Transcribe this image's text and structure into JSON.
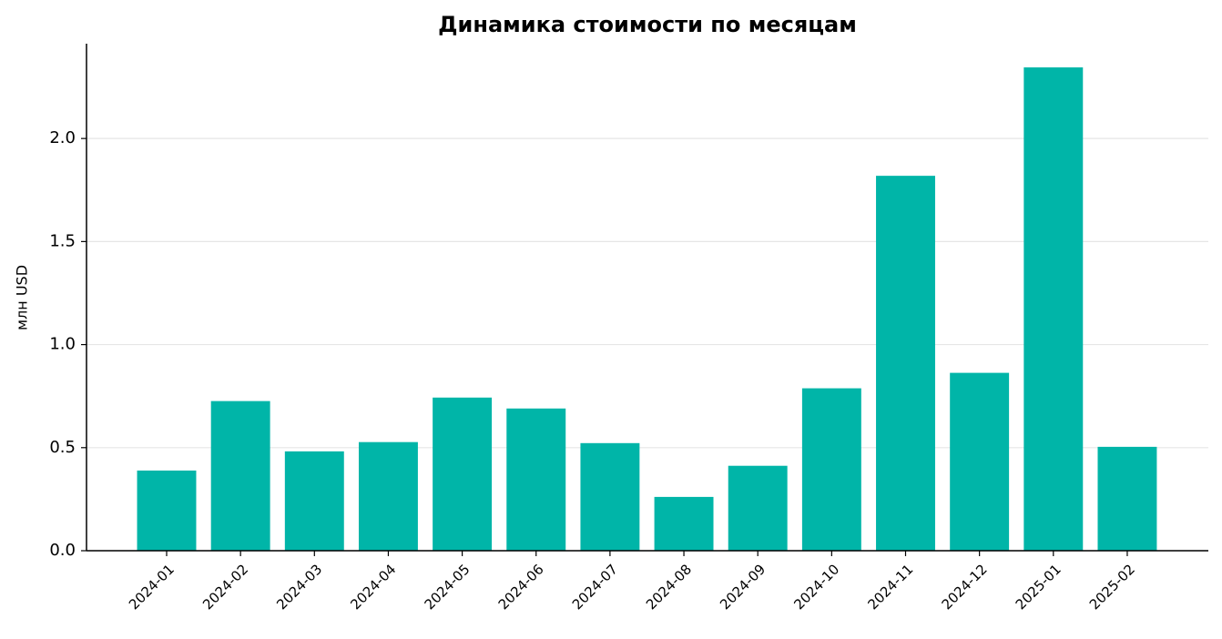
{
  "chart_data": {
    "type": "bar",
    "title": "Динамика стоимости по месяцам",
    "y_label": "млн USD",
    "categories": [
      "2024-01",
      "2024-02",
      "2024-03",
      "2024-04",
      "2024-05",
      "2024-06",
      "2024-07",
      "2024-08",
      "2024-09",
      "2024-10",
      "2024-11",
      "2024-12",
      "2025-01",
      "2025-02"
    ],
    "values": [
      0.389,
      0.726,
      0.482,
      0.527,
      0.743,
      0.69,
      0.522,
      0.261,
      0.412,
      0.788,
      1.819,
      0.863,
      2.345,
      0.504
    ],
    "color": "#00b5a8",
    "ylim": [
      0,
      2.46
    ],
    "yticks": [
      {
        "value": 0,
        "label": "0.0"
      },
      0.5,
      {
        "value": 1,
        "label": "1.0"
      },
      1.5,
      {
        "value": 2,
        "label": "2.0"
      }
    ],
    "grid": true
  }
}
